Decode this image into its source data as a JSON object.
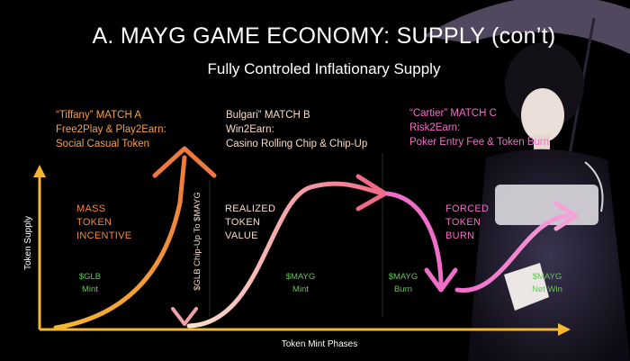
{
  "title": "A. MAYG GAME ECONOMY: SUPPLY (con’t)",
  "subtitle": "Fully Controled Inflationary Supply",
  "axes": {
    "y_label": "Token Supply",
    "x_label": "Token Mint Phases"
  },
  "match_a": {
    "lines": [
      "“Tiffany” MATCH A",
      "Free2Play & Play2Earn:",
      "Social Casual Token"
    ],
    "color": "#f5a04a"
  },
  "match_b": {
    "lines": [
      "Bulgari” MATCH B",
      "Win2Earn:",
      "Casino Rolling Chip & Chip-Up"
    ],
    "color": "#f7d9c8"
  },
  "match_c": {
    "lines": [
      "“Cartier” MATCH C",
      "Risk2Earn:",
      "Poker Entry Fee & Token Burn"
    ],
    "color": "#f06ec8"
  },
  "phase_labels": {
    "mass": [
      "MASS",
      "TOKEN",
      "INCENTIVE"
    ],
    "realized": [
      "REALIZED",
      "TOKEN",
      "VALUE"
    ],
    "forced": [
      "FORCED",
      "TOKEN",
      "BURN"
    ]
  },
  "vertical_label": "$GLB Chip-Up To $MAYG",
  "token_tags": {
    "glb": [
      "$GLB",
      "Mint"
    ],
    "mayg_mint": [
      "$MAYG",
      "Mint"
    ],
    "mayg_burn": [
      "$MAYG",
      "Burn"
    ],
    "mayg_net": [
      "$MAYG",
      "Net Win"
    ]
  },
  "colors": {
    "axis": "#f6b731",
    "orange": "#f2883c",
    "pink": "#f4a6b4",
    "magenta": "#f06ec8",
    "green": "#67c45a"
  }
}
